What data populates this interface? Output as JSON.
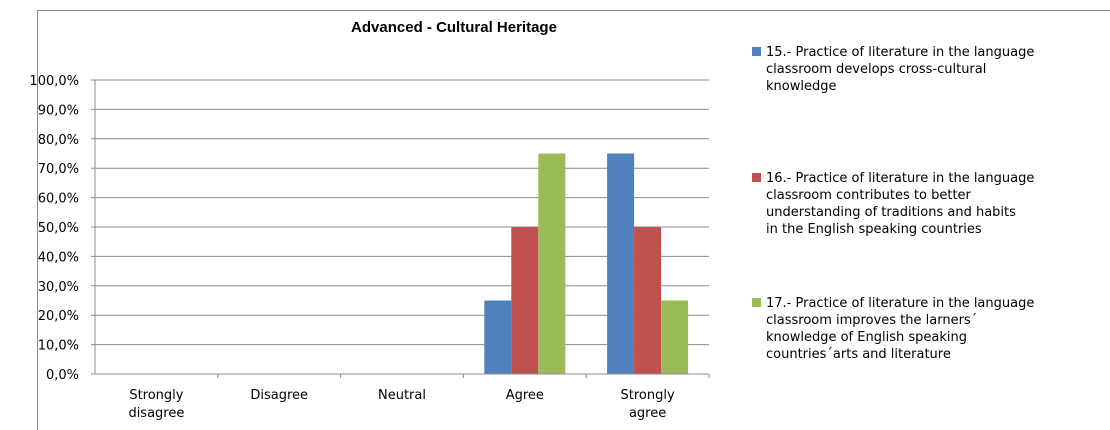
{
  "chart_data": {
    "type": "bar",
    "title": "Advanced - Cultural Heritage",
    "categories": [
      [
        "Strongly",
        "disagree"
      ],
      [
        "Disagree"
      ],
      [
        "Neutral"
      ],
      [
        "Agree"
      ],
      [
        "Strongly",
        "agree"
      ]
    ],
    "ylim": [
      0,
      100
    ],
    "yticks": [
      "0,0%",
      "10,0%",
      "20,0%",
      "30,0%",
      "40,0%",
      "50,0%",
      "60,0%",
      "70,0%",
      "80,0%",
      "90,0%",
      "100,0%"
    ],
    "grid": true,
    "legend_position": "right",
    "series": [
      {
        "name_lines": [
          "15.- Practice of literature in the language",
          "classroom develops cross-cultural",
          "knowledge"
        ],
        "color": "#4f81bd",
        "values": [
          0,
          0,
          0,
          25,
          75
        ]
      },
      {
        "name_lines": [
          "16.- Practice of literature in the language",
          "classroom contributes to better",
          "understanding of traditions and habits",
          "in the English speaking countries"
        ],
        "color": "#c0504d",
        "values": [
          0,
          0,
          0,
          50,
          50
        ]
      },
      {
        "name_lines": [
          "17.- Practice of literature in the language",
          "classroom improves the larners´",
          "knowledge of English speaking",
          "countries´arts and literature"
        ],
        "color": "#9bbb59",
        "values": [
          0,
          0,
          0,
          75,
          25
        ]
      }
    ]
  }
}
